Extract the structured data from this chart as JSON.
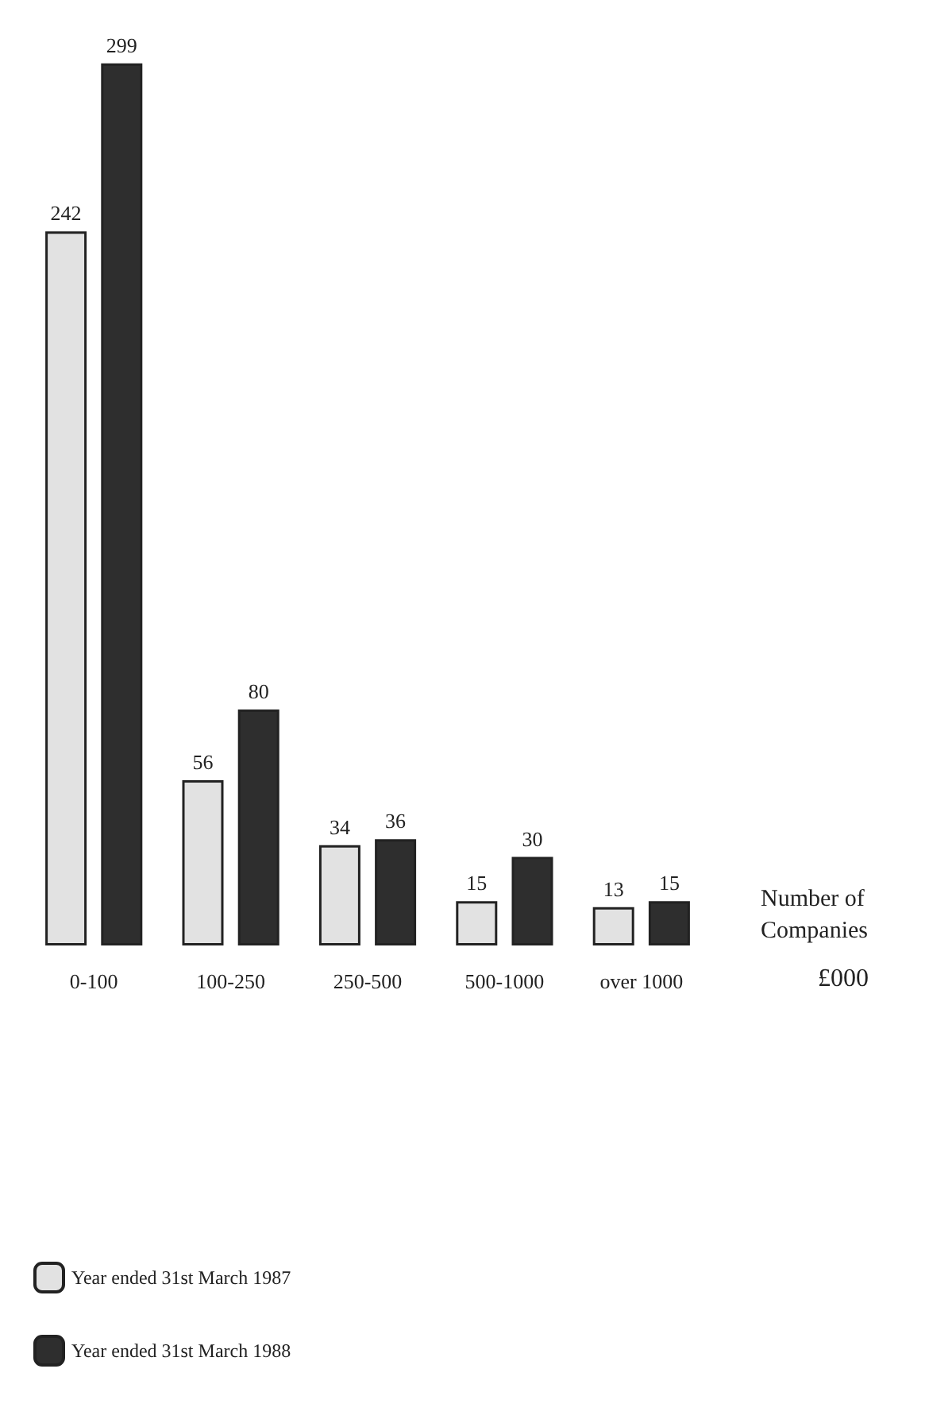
{
  "chart_data": {
    "type": "bar",
    "ylabel": "Number of Companies",
    "xlabel": "£000",
    "categories": [
      "0-100",
      "100-250",
      "250-500",
      "500-1000",
      "over 1000"
    ],
    "series": [
      {
        "name": "Year ended 31st March 1987",
        "color": "#e2e2e2",
        "values": [
          242,
          56,
          34,
          15,
          13
        ]
      },
      {
        "name": "Year ended 31st March 1988",
        "color": "#2e2e2e",
        "values": [
          299,
          80,
          36,
          30,
          15
        ]
      }
    ],
    "data_labels": true,
    "legend": "bottom left"
  }
}
